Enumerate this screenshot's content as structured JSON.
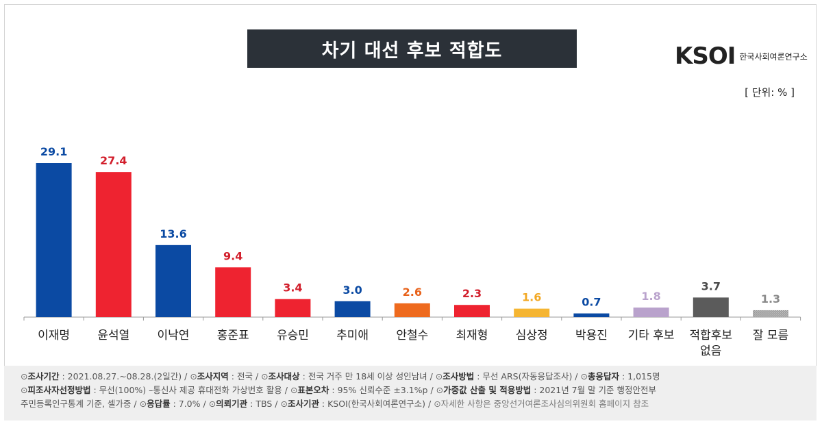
{
  "header": {
    "title": "차기 대선 후보 적합도",
    "logo_mark": "KSOI",
    "logo_text": "한국사회여론연구소",
    "unit": "[ 단위: % ]"
  },
  "chart_data": {
    "type": "bar",
    "title": "차기 대선 후보 적합도",
    "categories": [
      "이재명",
      "윤석열",
      "이낙연",
      "홍준표",
      "유승민",
      "추미애",
      "안철수",
      "최재형",
      "심상정",
      "박용진",
      "기타 후보",
      "적합후보 없음",
      "잘 모름"
    ],
    "category_lines": [
      [
        "이재명"
      ],
      [
        "윤석열"
      ],
      [
        "이낙연"
      ],
      [
        "홍준표"
      ],
      [
        "유승민"
      ],
      [
        "추미애"
      ],
      [
        "안철수"
      ],
      [
        "최재형"
      ],
      [
        "심상정"
      ],
      [
        "박용진"
      ],
      [
        "기타 후보"
      ],
      [
        "적합후보",
        "없음"
      ],
      [
        "잘 모름"
      ]
    ],
    "values": [
      29.1,
      27.4,
      13.6,
      9.4,
      3.4,
      3.0,
      2.6,
      2.3,
      1.6,
      0.7,
      1.8,
      3.7,
      1.3
    ],
    "value_labels": [
      "29.1",
      "27.4",
      "13.6",
      "9.4",
      "3.4",
      "3.0",
      "2.6",
      "2.3",
      "1.6",
      "0.7",
      "1.8",
      "3.7",
      "1.3"
    ],
    "colors": [
      "#0b4aa3",
      "#ee2330",
      "#0b4aa3",
      "#ee2330",
      "#ee2330",
      "#0b4aa3",
      "#ee6a1e",
      "#ee2330",
      "#f5b532",
      "#0b4aa3",
      "#b9a2cc",
      "#5b5b5b",
      "#b8b8b8"
    ],
    "label_colors": [
      "#0b4aa3",
      "#d21e2b",
      "#0b4aa3",
      "#d21e2b",
      "#d21e2b",
      "#0b4aa3",
      "#e8621a",
      "#d21e2b",
      "#f2a823",
      "#0b4aa3",
      "#b9a2cc",
      "#4a4a4a",
      "#8a8a8a"
    ],
    "hatched": [
      false,
      false,
      false,
      false,
      false,
      false,
      false,
      false,
      false,
      false,
      false,
      false,
      true
    ],
    "ylim": [
      0,
      29.1
    ],
    "grid": false,
    "xlabel": "",
    "ylabel": ""
  },
  "footer": {
    "line1": [
      {
        "label": "조사기간",
        "value": "2021.08.27.~08.28.(2일간)"
      },
      {
        "label": "조사지역",
        "value": "전국"
      },
      {
        "label": "조사대상",
        "value": "전국 거주 만 18세 이상 성인남녀"
      },
      {
        "label": "조사방법",
        "value": "무선 ARS(자동응답조사)"
      },
      {
        "label": "총응답자",
        "value": "1,015명"
      }
    ],
    "line2": [
      {
        "label": "피조사자선정방법",
        "value": "무선(100%) –통신사 제공 휴대전화 가상번호 활용"
      },
      {
        "label": "표본오차",
        "value": "95% 신뢰수준 ±3.1%p"
      },
      {
        "label": "가중값 산출 및 적용방법",
        "value": "2021년 7월 말 기준 행정안전부"
      }
    ],
    "line3_prefix": "주민등록인구통계 기준, 셀가중",
    "line3": [
      {
        "label": "응답률",
        "value": "7.0%"
      },
      {
        "label": "의뢰기관",
        "value": "TBS"
      },
      {
        "label": "조사기관",
        "value": "KSOI(한국사회여론연구소)"
      }
    ],
    "note": "자세한 사항은 중앙선거여론조사심의위원회 홈페이지 참조",
    "bullet": "⊙"
  }
}
